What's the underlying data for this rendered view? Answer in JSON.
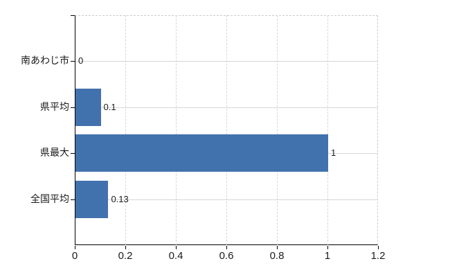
{
  "chart_data": {
    "type": "bar",
    "orientation": "horizontal",
    "categories": [
      "南あわじ市",
      "県平均",
      "県最大",
      "全国平均"
    ],
    "values": [
      0,
      0.1,
      1,
      0.13
    ],
    "value_labels": [
      "0",
      "0.1",
      "1",
      "0.13"
    ],
    "x_axis": {
      "range": [
        0,
        1.2
      ],
      "ticks": [
        0,
        0.2,
        0.4,
        0.6,
        0.8,
        1,
        1.2
      ],
      "tick_labels": [
        "0",
        "0.2",
        "0.4",
        "0.6",
        "0.8",
        "1",
        "1.2"
      ]
    },
    "grid": true,
    "legend": false,
    "colors": {
      "bar": "#4272ad",
      "axis": "#000000",
      "gridline": "#d6d6d6",
      "plot_border": "#cfcacf",
      "text": "#1a1a1a",
      "background": "#ffffff"
    }
  }
}
